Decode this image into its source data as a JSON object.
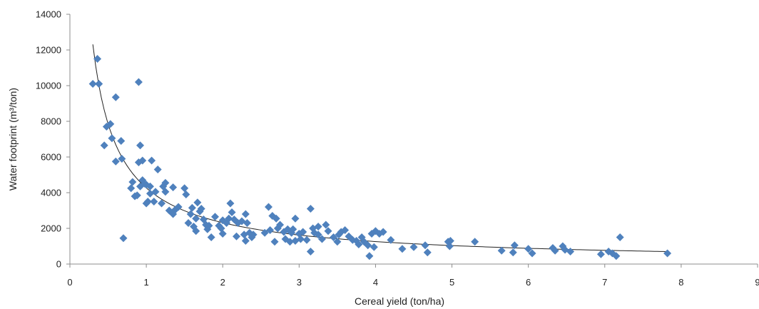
{
  "chart_data": {
    "type": "scatter",
    "xlabel": "Cereal yield (ton/ha)",
    "ylabel": "Water footprint (m³/ton)",
    "xlim": [
      0,
      9
    ],
    "ylim": [
      0,
      14000
    ],
    "xticks": [
      0,
      1,
      2,
      3,
      4,
      5,
      6,
      7,
      8,
      9
    ],
    "yticks": [
      0,
      2000,
      4000,
      6000,
      8000,
      10000,
      12000,
      14000
    ],
    "grid": false,
    "legend": "none",
    "marker": "diamond",
    "marker_color": "#4f81bd",
    "trendline": {
      "type": "power",
      "x_range": [
        0.3,
        7.8
      ]
    },
    "points": [
      [
        0.3,
        10100
      ],
      [
        0.36,
        11500
      ],
      [
        0.38,
        10100
      ],
      [
        0.45,
        6650
      ],
      [
        0.48,
        7700
      ],
      [
        0.53,
        7850
      ],
      [
        0.55,
        7050
      ],
      [
        0.6,
        9350
      ],
      [
        0.6,
        5750
      ],
      [
        0.67,
        6900
      ],
      [
        0.68,
        5900
      ],
      [
        0.7,
        1450
      ],
      [
        0.8,
        4250
      ],
      [
        0.82,
        4600
      ],
      [
        0.85,
        3800
      ],
      [
        0.88,
        3850
      ],
      [
        0.9,
        5700
      ],
      [
        0.9,
        10200
      ],
      [
        0.92,
        6650
      ],
      [
        0.92,
        4350
      ],
      [
        0.95,
        5800
      ],
      [
        0.95,
        4700
      ],
      [
        0.98,
        4500
      ],
      [
        1.0,
        4450
      ],
      [
        1.0,
        3400
      ],
      [
        1.02,
        3500
      ],
      [
        1.05,
        3950
      ],
      [
        1.05,
        4350
      ],
      [
        1.07,
        5800
      ],
      [
        1.1,
        3500
      ],
      [
        1.12,
        4050
      ],
      [
        1.15,
        5300
      ],
      [
        1.2,
        3400
      ],
      [
        1.22,
        4350
      ],
      [
        1.25,
        4550
      ],
      [
        1.25,
        4050
      ],
      [
        1.3,
        3000
      ],
      [
        1.35,
        4300
      ],
      [
        1.35,
        2800
      ],
      [
        1.38,
        3050
      ],
      [
        1.42,
        3200
      ],
      [
        1.5,
        4250
      ],
      [
        1.52,
        3900
      ],
      [
        1.55,
        2300
      ],
      [
        1.58,
        2800
      ],
      [
        1.6,
        3150
      ],
      [
        1.62,
        2100
      ],
      [
        1.65,
        2550
      ],
      [
        1.65,
        1850
      ],
      [
        1.67,
        3450
      ],
      [
        1.7,
        2950
      ],
      [
        1.72,
        3100
      ],
      [
        1.75,
        2500
      ],
      [
        1.78,
        2200
      ],
      [
        1.8,
        1950
      ],
      [
        1.82,
        2150
      ],
      [
        1.85,
        1500
      ],
      [
        1.9,
        2650
      ],
      [
        1.95,
        2150
      ],
      [
        1.98,
        2000
      ],
      [
        2.0,
        2450
      ],
      [
        2.0,
        1700
      ],
      [
        2.05,
        2300
      ],
      [
        2.08,
        2550
      ],
      [
        2.1,
        3400
      ],
      [
        2.12,
        2900
      ],
      [
        2.15,
        2500
      ],
      [
        2.18,
        1550
      ],
      [
        2.2,
        2300
      ],
      [
        2.25,
        2400
      ],
      [
        2.28,
        1650
      ],
      [
        2.3,
        2800
      ],
      [
        2.3,
        1300
      ],
      [
        2.32,
        2300
      ],
      [
        2.35,
        1750
      ],
      [
        2.38,
        1500
      ],
      [
        2.4,
        1650
      ],
      [
        2.55,
        1750
      ],
      [
        2.6,
        3200
      ],
      [
        2.62,
        1900
      ],
      [
        2.65,
        2700
      ],
      [
        2.68,
        1250
      ],
      [
        2.7,
        2550
      ],
      [
        2.72,
        2000
      ],
      [
        2.75,
        2200
      ],
      [
        2.8,
        1800
      ],
      [
        2.82,
        1400
      ],
      [
        2.85,
        1950
      ],
      [
        2.88,
        1250
      ],
      [
        2.9,
        1750
      ],
      [
        2.92,
        1950
      ],
      [
        2.95,
        2550
      ],
      [
        2.95,
        1300
      ],
      [
        3.0,
        1700
      ],
      [
        3.02,
        1400
      ],
      [
        3.05,
        1800
      ],
      [
        3.1,
        1350
      ],
      [
        3.15,
        3100
      ],
      [
        3.15,
        700
      ],
      [
        3.18,
        2000
      ],
      [
        3.2,
        1750
      ],
      [
        3.25,
        2100
      ],
      [
        3.25,
        1650
      ],
      [
        3.3,
        1400
      ],
      [
        3.35,
        2200
      ],
      [
        3.38,
        1850
      ],
      [
        3.45,
        1500
      ],
      [
        3.5,
        1250
      ],
      [
        3.52,
        1650
      ],
      [
        3.55,
        1800
      ],
      [
        3.6,
        1900
      ],
      [
        3.65,
        1550
      ],
      [
        3.7,
        1350
      ],
      [
        3.75,
        1300
      ],
      [
        3.78,
        1100
      ],
      [
        3.82,
        1500
      ],
      [
        3.85,
        1250
      ],
      [
        3.9,
        1050
      ],
      [
        3.92,
        450
      ],
      [
        3.95,
        1700
      ],
      [
        3.98,
        950
      ],
      [
        4.0,
        1850
      ],
      [
        4.05,
        1700
      ],
      [
        4.1,
        1800
      ],
      [
        4.2,
        1350
      ],
      [
        4.35,
        850
      ],
      [
        4.5,
        950
      ],
      [
        4.65,
        1050
      ],
      [
        4.68,
        650
      ],
      [
        4.95,
        1250
      ],
      [
        4.97,
        1000
      ],
      [
        4.98,
        1300
      ],
      [
        5.3,
        1250
      ],
      [
        5.65,
        750
      ],
      [
        5.8,
        650
      ],
      [
        5.82,
        1050
      ],
      [
        6.0,
        850
      ],
      [
        6.05,
        600
      ],
      [
        6.32,
        900
      ],
      [
        6.35,
        750
      ],
      [
        6.45,
        1000
      ],
      [
        6.48,
        800
      ],
      [
        6.55,
        700
      ],
      [
        6.95,
        550
      ],
      [
        7.05,
        700
      ],
      [
        7.1,
        600
      ],
      [
        7.15,
        450
      ],
      [
        7.2,
        1500
      ],
      [
        7.82,
        600
      ]
    ]
  }
}
